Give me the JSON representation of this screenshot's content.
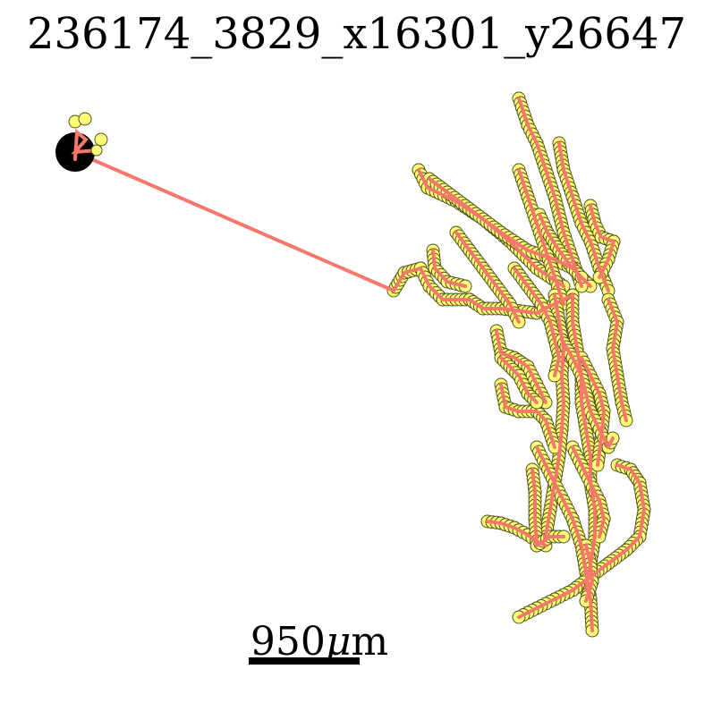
{
  "title": "236174_3829_x16301_y26647",
  "scale_bar": {
    "value": "950",
    "unit_symbol": "μ",
    "unit_suffix": "m"
  },
  "colors": {
    "trace_line": "#f7786b",
    "node_fill": "#ffff77",
    "node_stroke": "#505020",
    "soma": "#000000"
  }
}
